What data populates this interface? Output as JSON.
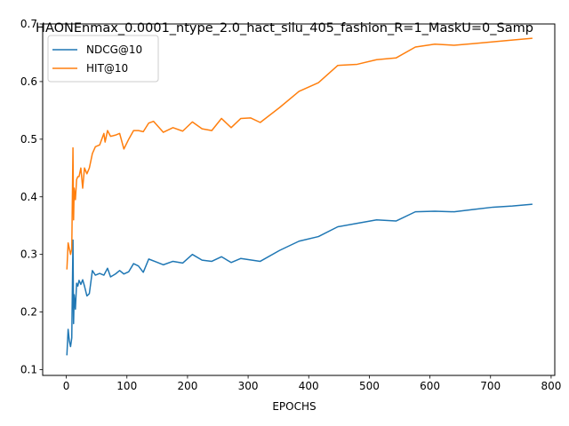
{
  "chart_data": {
    "type": "line",
    "title": "HAONEnmax_0.0001_ntype_2.0_hact_silu_405_fashion_R=1_MaskU=0_Samp",
    "xlabel": "EPOCHS",
    "ylabel": "",
    "xlim": [
      -39,
      806
    ],
    "ylim": [
      0.09,
      0.7
    ],
    "xticks": [
      0,
      100,
      200,
      300,
      400,
      500,
      600,
      700,
      800
    ],
    "yticks": [
      0.1,
      0.2,
      0.3,
      0.4,
      0.5,
      0.6,
      0.7
    ],
    "legend_placement": "top-left",
    "grid": false,
    "series": [
      {
        "name": "NDCG@10",
        "color": "#1f77b4",
        "points": [
          [
            1,
            0.126
          ],
          [
            3,
            0.17
          ],
          [
            5,
            0.15
          ],
          [
            7,
            0.14
          ],
          [
            9,
            0.155
          ],
          [
            11,
            0.325
          ],
          [
            12,
            0.18
          ],
          [
            13,
            0.23
          ],
          [
            15,
            0.205
          ],
          [
            17,
            0.25
          ],
          [
            19,
            0.245
          ],
          [
            21,
            0.255
          ],
          [
            24,
            0.248
          ],
          [
            27,
            0.256
          ],
          [
            30,
            0.245
          ],
          [
            34,
            0.228
          ],
          [
            38,
            0.232
          ],
          [
            43,
            0.272
          ],
          [
            48,
            0.264
          ],
          [
            55,
            0.267
          ],
          [
            62,
            0.264
          ],
          [
            68,
            0.276
          ],
          [
            73,
            0.261
          ],
          [
            81,
            0.266
          ],
          [
            88,
            0.272
          ],
          [
            95,
            0.266
          ],
          [
            103,
            0.27
          ],
          [
            111,
            0.284
          ],
          [
            119,
            0.28
          ],
          [
            127,
            0.269
          ],
          [
            136,
            0.292
          ],
          [
            148,
            0.287
          ],
          [
            160,
            0.282
          ],
          [
            176,
            0.288
          ],
          [
            192,
            0.285
          ],
          [
            208,
            0.3
          ],
          [
            224,
            0.29
          ],
          [
            240,
            0.288
          ],
          [
            256,
            0.296
          ],
          [
            272,
            0.286
          ],
          [
            288,
            0.293
          ],
          [
            320,
            0.288
          ],
          [
            352,
            0.307
          ],
          [
            384,
            0.323
          ],
          [
            416,
            0.331
          ],
          [
            448,
            0.348
          ],
          [
            480,
            0.354
          ],
          [
            512,
            0.36
          ],
          [
            544,
            0.358
          ],
          [
            576,
            0.374
          ],
          [
            608,
            0.375
          ],
          [
            640,
            0.374
          ],
          [
            672,
            0.378
          ],
          [
            704,
            0.382
          ],
          [
            736,
            0.384
          ],
          [
            768,
            0.387
          ]
        ]
      },
      {
        "name": "HIT@10",
        "color": "#ff7f0e",
        "points": [
          [
            1,
            0.275
          ],
          [
            3,
            0.32
          ],
          [
            5,
            0.31
          ],
          [
            7,
            0.3
          ],
          [
            9,
            0.31
          ],
          [
            11,
            0.485
          ],
          [
            12,
            0.36
          ],
          [
            13,
            0.415
          ],
          [
            15,
            0.395
          ],
          [
            17,
            0.43
          ],
          [
            19,
            0.435
          ],
          [
            21,
            0.435
          ],
          [
            24,
            0.45
          ],
          [
            27,
            0.415
          ],
          [
            30,
            0.45
          ],
          [
            34,
            0.44
          ],
          [
            38,
            0.45
          ],
          [
            43,
            0.475
          ],
          [
            48,
            0.487
          ],
          [
            55,
            0.49
          ],
          [
            62,
            0.51
          ],
          [
            64,
            0.495
          ],
          [
            68,
            0.515
          ],
          [
            73,
            0.505
          ],
          [
            81,
            0.507
          ],
          [
            88,
            0.51
          ],
          [
            95,
            0.483
          ],
          [
            103,
            0.5
          ],
          [
            111,
            0.515
          ],
          [
            119,
            0.515
          ],
          [
            127,
            0.513
          ],
          [
            136,
            0.528
          ],
          [
            144,
            0.531
          ],
          [
            160,
            0.512
          ],
          [
            176,
            0.52
          ],
          [
            192,
            0.514
          ],
          [
            208,
            0.53
          ],
          [
            224,
            0.518
          ],
          [
            240,
            0.515
          ],
          [
            256,
            0.536
          ],
          [
            272,
            0.52
          ],
          [
            288,
            0.536
          ],
          [
            304,
            0.537
          ],
          [
            320,
            0.529
          ],
          [
            352,
            0.555
          ],
          [
            384,
            0.583
          ],
          [
            416,
            0.598
          ],
          [
            448,
            0.628
          ],
          [
            480,
            0.63
          ],
          [
            512,
            0.638
          ],
          [
            544,
            0.641
          ],
          [
            576,
            0.66
          ],
          [
            608,
            0.665
          ],
          [
            640,
            0.663
          ],
          [
            672,
            0.666
          ],
          [
            704,
            0.669
          ],
          [
            736,
            0.672
          ],
          [
            768,
            0.675
          ]
        ]
      }
    ]
  }
}
